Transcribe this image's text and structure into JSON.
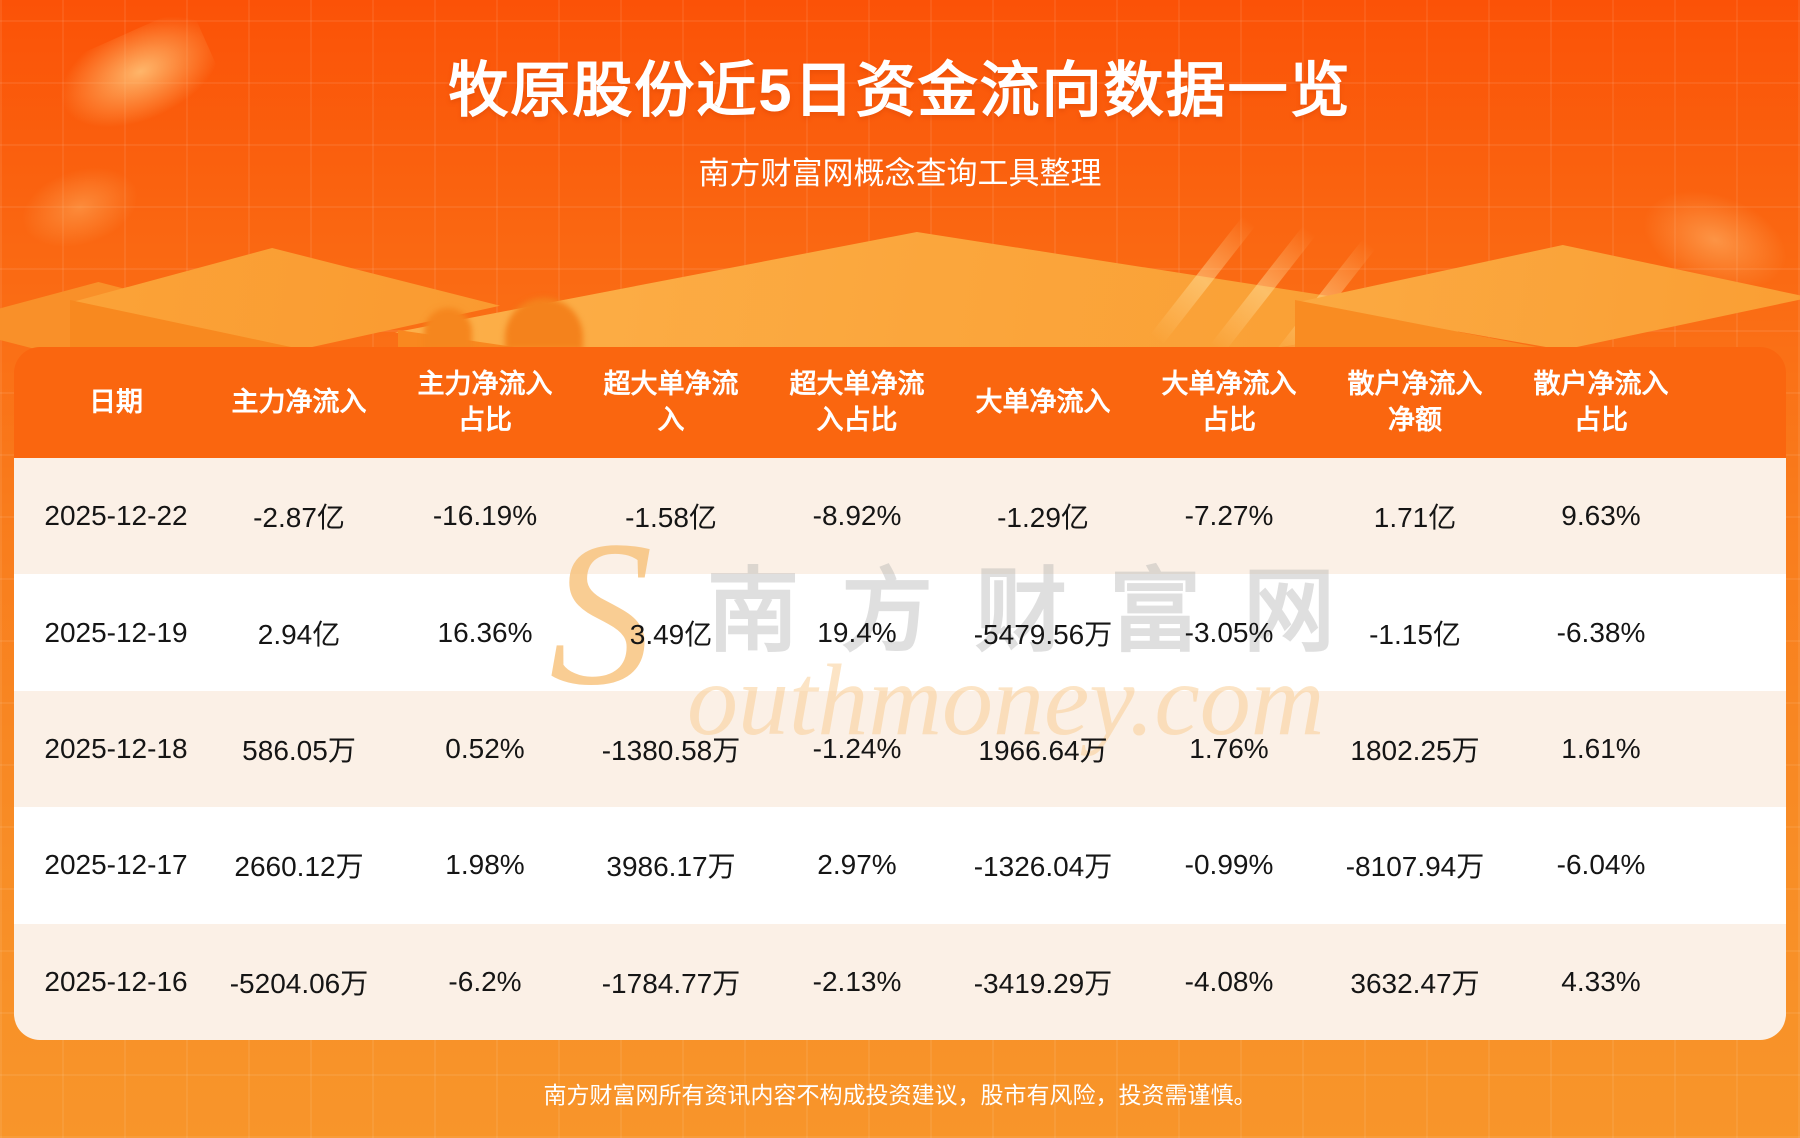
{
  "page": {
    "title": "牧原股份近5日资金流向数据一览",
    "subtitle": "南方财富网概念查询工具整理",
    "disclaimer": "南方财富网所有资讯内容不构成投资建议，股市有风险，投资需谨慎。"
  },
  "watermark": {
    "en_initial": "S",
    "cn": "南方财富网",
    "en_rest": "outhmoney.com"
  },
  "colors": {
    "background_top": "#fb5207",
    "background_bottom": "#f8952a",
    "header_bg": "#fa660f",
    "row_stripe_bg": "#fbf0e6",
    "row_white_bg": "#ffffff",
    "text_on_orange": "#ffffff",
    "cell_text": "#151515"
  },
  "header_display": [
    "日期",
    "主力净流入",
    "主力净流入\n占比",
    "超大单净流\n入",
    "超大单净流\n入占比",
    "大单净流入",
    "大单净流入\n占比",
    "散户净流入\n净额",
    "散户净流入\n占比"
  ],
  "chart_data": {
    "type": "table",
    "title": "牧原股份近5日资金流向数据一览",
    "subtitle": "南方财富网概念查询工具整理",
    "columns": [
      "日期",
      "主力净流入",
      "主力净流入占比",
      "超大单净流入",
      "超大单净流入占比",
      "大单净流入",
      "大单净流入占比",
      "散户净流入净额",
      "散户净流入占比"
    ],
    "rows": [
      [
        "2025-12-22",
        "-2.87亿",
        "-16.19%",
        "-1.58亿",
        "-8.92%",
        "-1.29亿",
        "-7.27%",
        "1.71亿",
        "9.63%"
      ],
      [
        "2025-12-19",
        "2.94亿",
        "16.36%",
        "3.49亿",
        "19.4%",
        "-5479.56万",
        "-3.05%",
        "-1.15亿",
        "-6.38%"
      ],
      [
        "2025-12-18",
        "586.05万",
        "0.52%",
        "-1380.58万",
        "-1.24%",
        "1966.64万",
        "1.76%",
        "1802.25万",
        "1.61%"
      ],
      [
        "2025-12-17",
        "2660.12万",
        "1.98%",
        "3986.17万",
        "2.97%",
        "-1326.04万",
        "-0.99%",
        "-8107.94万",
        "-6.04%"
      ],
      [
        "2025-12-16",
        "-5204.06万",
        "-6.2%",
        "-1784.77万",
        "-2.13%",
        "-3419.29万",
        "-4.08%",
        "3632.47万",
        "4.33%"
      ]
    ]
  }
}
